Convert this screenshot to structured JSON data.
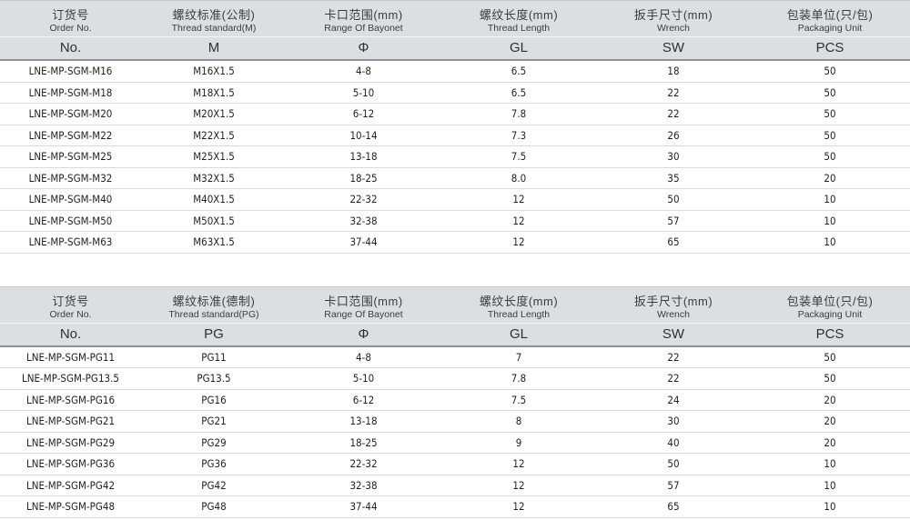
{
  "colors": {
    "header_bg": "#dcdfe1",
    "header_bottom_line": "#8d9294",
    "row_line": "#d8dadb"
  },
  "tables": [
    {
      "name": "metric-thread-table",
      "columns": [
        {
          "cn": "订货号",
          "en": "Order No.",
          "code": "No."
        },
        {
          "cn": "螺纹标准(公制)",
          "en": "Thread standard(M)",
          "code": "M"
        },
        {
          "cn": "卡口范围(mm)",
          "en": "Range Of Bayonet",
          "code": "Φ"
        },
        {
          "cn": "螺纹长度(mm)",
          "en": "Thread Length",
          "code": "GL"
        },
        {
          "cn": "扳手尺寸(mm)",
          "en": "Wrench",
          "code": "SW"
        },
        {
          "cn": "包装单位(只/包)",
          "en": "Packaging Unit",
          "code": "PCS"
        }
      ],
      "rows": [
        [
          "LNE-MP-SGM-M16",
          "M16X1.5",
          "4-8",
          "6.5",
          "18",
          "50"
        ],
        [
          "LNE-MP-SGM-M18",
          "M18X1.5",
          "5-10",
          "6.5",
          "22",
          "50"
        ],
        [
          "LNE-MP-SGM-M20",
          "M20X1.5",
          "6-12",
          "7.8",
          "22",
          "50"
        ],
        [
          "LNE-MP-SGM-M22",
          "M22X1.5",
          "10-14",
          "7.3",
          "26",
          "50"
        ],
        [
          "LNE-MP-SGM-M25",
          "M25X1.5",
          "13-18",
          "7.5",
          "30",
          "50"
        ],
        [
          "LNE-MP-SGM-M32",
          "M32X1.5",
          "18-25",
          "8.0",
          "35",
          "20"
        ],
        [
          "LNE-MP-SGM-M40",
          "M40X1.5",
          "22-32",
          "12",
          "50",
          "10"
        ],
        [
          "LNE-MP-SGM-M50",
          "M50X1.5",
          "32-38",
          "12",
          "57",
          "10"
        ],
        [
          "LNE-MP-SGM-M63",
          "M63X1.5",
          "37-44",
          "12",
          "65",
          "10"
        ]
      ]
    },
    {
      "name": "pg-thread-table",
      "columns": [
        {
          "cn": "订货号",
          "en": "Order No.",
          "code": "No."
        },
        {
          "cn": "螺纹标准(德制)",
          "en": "Thread standard(PG)",
          "code": "PG"
        },
        {
          "cn": "卡口范围(mm)",
          "en": "Range Of Bayonet",
          "code": "Φ"
        },
        {
          "cn": "螺纹长度(mm)",
          "en": "Thread Length",
          "code": "GL"
        },
        {
          "cn": "扳手尺寸(mm)",
          "en": "Wrench",
          "code": "SW"
        },
        {
          "cn": "包装单位(只/包)",
          "en": "Packaging Unit",
          "code": "PCS"
        }
      ],
      "rows": [
        [
          "LNE-MP-SGM-PG11",
          "PG11",
          "4-8",
          "7",
          "22",
          "50"
        ],
        [
          "LNE-MP-SGM-PG13.5",
          "PG13.5",
          "5-10",
          "7.8",
          "22",
          "50"
        ],
        [
          "LNE-MP-SGM-PG16",
          "PG16",
          "6-12",
          "7.5",
          "24",
          "20"
        ],
        [
          "LNE-MP-SGM-PG21",
          "PG21",
          "13-18",
          "8",
          "30",
          "20"
        ],
        [
          "LNE-MP-SGM-PG29",
          "PG29",
          "18-25",
          "9",
          "40",
          "20"
        ],
        [
          "LNE-MP-SGM-PG36",
          "PG36",
          "22-32",
          "12",
          "50",
          "10"
        ],
        [
          "LNE-MP-SGM-PG42",
          "PG42",
          "32-38",
          "12",
          "57",
          "10"
        ],
        [
          "LNE-MP-SGM-PG48",
          "PG48",
          "37-44",
          "12",
          "65",
          "10"
        ]
      ]
    }
  ]
}
